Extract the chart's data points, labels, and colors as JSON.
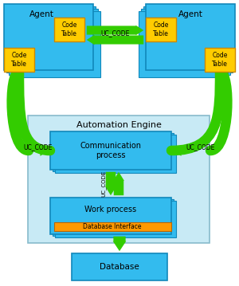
{
  "fig_width": 3.0,
  "fig_height": 3.59,
  "bg_color": "#ffffff",
  "cyan_box": "#33bbee",
  "cyan_light": "#c8eaf5",
  "yellow": "#ffcc00",
  "orange": "#ff9900",
  "green": "#33cc00",
  "dark_edge": "#1188bb",
  "agent_label": "Agent",
  "code_table_label": "Code\nTable",
  "uc_code_label": "UC_CODE",
  "automation_engine_label": "Automation Engine",
  "comm_process_label": "Communication\nprocess",
  "work_process_label": "Work process",
  "db_interface_label": "Database Interface",
  "database_label": "Database"
}
